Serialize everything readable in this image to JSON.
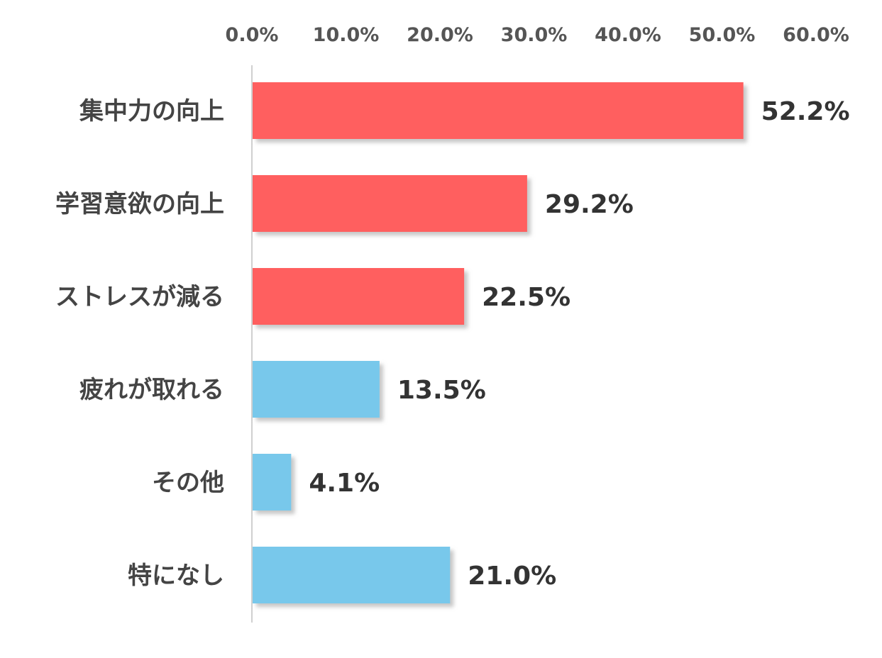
{
  "chart_data": {
    "type": "bar",
    "orientation": "horizontal",
    "categories": [
      "集中力の向上",
      "学習意欲の向上",
      "ストレスが減る",
      "疲れが取れる",
      "その他",
      "特になし"
    ],
    "values": [
      52.2,
      29.2,
      22.5,
      13.5,
      4.1,
      21.0
    ],
    "value_labels": [
      "52.2%",
      "29.2%",
      "22.5%",
      "13.5%",
      "4.1%",
      "21.0%"
    ],
    "bar_colors": [
      "#ff5f5f",
      "#ff5f5f",
      "#ff5f5f",
      "#78c8eb",
      "#78c8eb",
      "#78c8eb"
    ],
    "x_ticks": [
      0,
      10,
      20,
      30,
      40,
      50,
      60
    ],
    "x_tick_labels": [
      "0.0%",
      "10.0%",
      "20.0%",
      "30.0%",
      "40.0%",
      "50.0%",
      "60.0%"
    ],
    "xlim": [
      0,
      60
    ],
    "x_axis_position": "top",
    "grid": false,
    "title": "",
    "xlabel": "",
    "ylabel": ""
  },
  "colors": {
    "axis_line": "#d0d0d0",
    "shadow": "#bbbbbb"
  }
}
